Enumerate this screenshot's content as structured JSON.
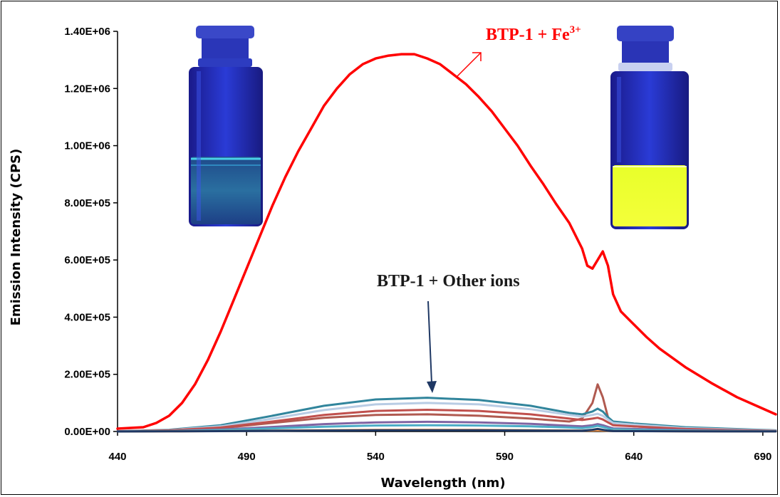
{
  "chart_data": {
    "type": "line",
    "xlabel": "Wavelength (nm)",
    "ylabel": "Emission Intensity (CPS)",
    "xlim": [
      440,
      695
    ],
    "ylim": [
      0,
      1400000
    ],
    "x_ticks": [
      "440",
      "490",
      "540",
      "590",
      "640",
      "690"
    ],
    "y_ticks": [
      "0.00E+00",
      "2.00E+05",
      "4.00E+05",
      "6.00E+05",
      "8.00E+05",
      "1.00E+06",
      "1.20E+06",
      "1.40E+06"
    ],
    "grid": false,
    "series": [
      {
        "color": "#ff0000",
        "x": [
          440,
          450,
          455,
          460,
          465,
          470,
          475,
          480,
          485,
          490,
          495,
          500,
          505,
          510,
          515,
          520,
          525,
          530,
          535,
          540,
          545,
          550,
          555,
          560,
          565,
          570,
          575,
          580,
          585,
          590,
          595,
          600,
          605,
          610,
          615,
          620,
          622,
          624,
          626,
          628,
          630,
          632,
          635,
          640,
          645,
          650,
          660,
          670,
          680,
          690,
          695
        ],
        "values": [
          10000,
          15000,
          30000,
          55000,
          100000,
          165000,
          250000,
          350000,
          460000,
          570000,
          680000,
          790000,
          890000,
          980000,
          1060000,
          1140000,
          1200000,
          1250000,
          1285000,
          1305000,
          1315000,
          1320000,
          1320000,
          1305000,
          1285000,
          1250000,
          1215000,
          1170000,
          1120000,
          1060000,
          1000000,
          930000,
          865000,
          795000,
          730000,
          640000,
          580000,
          570000,
          600000,
          630000,
          580000,
          480000,
          420000,
          375000,
          330000,
          290000,
          225000,
          170000,
          120000,
          80000,
          60000
        ]
      },
      {
        "color": "#b05a50",
        "x": [
          440,
          460,
          480,
          500,
          520,
          540,
          560,
          580,
          600,
          615,
          620,
          624,
          626,
          628,
          630,
          632,
          640,
          660,
          695
        ],
        "values": [
          500,
          3000,
          12000,
          30000,
          48000,
          58000,
          60000,
          55000,
          45000,
          35000,
          45000,
          100000,
          165000,
          120000,
          50000,
          25000,
          18000,
          8000,
          2000
        ]
      },
      {
        "color": "#31859c",
        "x": [
          440,
          460,
          480,
          500,
          520,
          540,
          560,
          580,
          600,
          615,
          620,
          624,
          626,
          628,
          630,
          632,
          640,
          660,
          695
        ],
        "values": [
          1000,
          6000,
          22000,
          55000,
          90000,
          112000,
          118000,
          110000,
          90000,
          65000,
          60000,
          70000,
          80000,
          70000,
          50000,
          35000,
          28000,
          15000,
          4000
        ]
      },
      {
        "color": "#b8cce4",
        "x": [
          440,
          460,
          480,
          500,
          520,
          540,
          560,
          580,
          600,
          615,
          620,
          624,
          626,
          628,
          630,
          632,
          640,
          660,
          695
        ],
        "values": [
          800,
          5000,
          18000,
          45000,
          75000,
          95000,
          100000,
          95000,
          78000,
          58000,
          52000,
          58000,
          62000,
          55000,
          42000,
          30000,
          24000,
          12000,
          3000
        ]
      },
      {
        "color": "#c0504d",
        "x": [
          440,
          460,
          480,
          500,
          520,
          540,
          560,
          580,
          600,
          615,
          620,
          624,
          626,
          628,
          630,
          632,
          640,
          660,
          695
        ],
        "values": [
          600,
          4000,
          14000,
          35000,
          58000,
          72000,
          76000,
          72000,
          60000,
          45000,
          40000,
          45000,
          48000,
          42000,
          32000,
          22000,
          18000,
          9000,
          2000
        ]
      },
      {
        "color": "#8064a2",
        "x": [
          440,
          460,
          480,
          500,
          520,
          540,
          560,
          580,
          600,
          615,
          620,
          624,
          626,
          628,
          630,
          632,
          640,
          660,
          695
        ],
        "values": [
          300,
          2000,
          7000,
          16000,
          26000,
          32000,
          34000,
          32000,
          27000,
          20000,
          18000,
          22000,
          26000,
          22000,
          16000,
          11000,
          9000,
          5000,
          1000
        ]
      },
      {
        "color": "#4bacc6",
        "x": [
          440,
          460,
          480,
          500,
          520,
          540,
          560,
          580,
          600,
          615,
          620,
          624,
          626,
          628,
          630,
          632,
          640,
          660,
          695
        ],
        "values": [
          200,
          1500,
          5000,
          11000,
          17000,
          21000,
          22000,
          21000,
          18000,
          14000,
          12000,
          16000,
          20000,
          16000,
          11000,
          8000,
          6000,
          3000,
          800
        ]
      },
      {
        "color": "#f79646",
        "x": [
          440,
          460,
          480,
          500,
          520,
          540,
          560,
          580,
          600,
          615,
          620,
          624,
          626,
          628,
          630,
          632,
          640,
          660,
          695
        ],
        "values": [
          100,
          500,
          1500,
          3000,
          4500,
          5500,
          6000,
          5500,
          4500,
          3500,
          3000,
          3500,
          4000,
          3500,
          2500,
          2000,
          1500,
          800,
          200
        ]
      },
      {
        "color": "#1f3864",
        "x": [
          440,
          460,
          480,
          500,
          520,
          540,
          560,
          580,
          600,
          615,
          620,
          624,
          626,
          628,
          630,
          632,
          640,
          660,
          695
        ],
        "values": [
          100,
          400,
          1200,
          2500,
          3500,
          4200,
          4500,
          4200,
          3500,
          2800,
          2500,
          6000,
          9000,
          6000,
          3000,
          1500,
          1200,
          600,
          150
        ]
      }
    ],
    "annotations": [
      {
        "text": "BTP-1 + Fe",
        "superscript": "3+",
        "color": "#ff0000"
      },
      {
        "text": "BTP-1 + Other ions",
        "color": "#1a1a1a"
      }
    ]
  }
}
